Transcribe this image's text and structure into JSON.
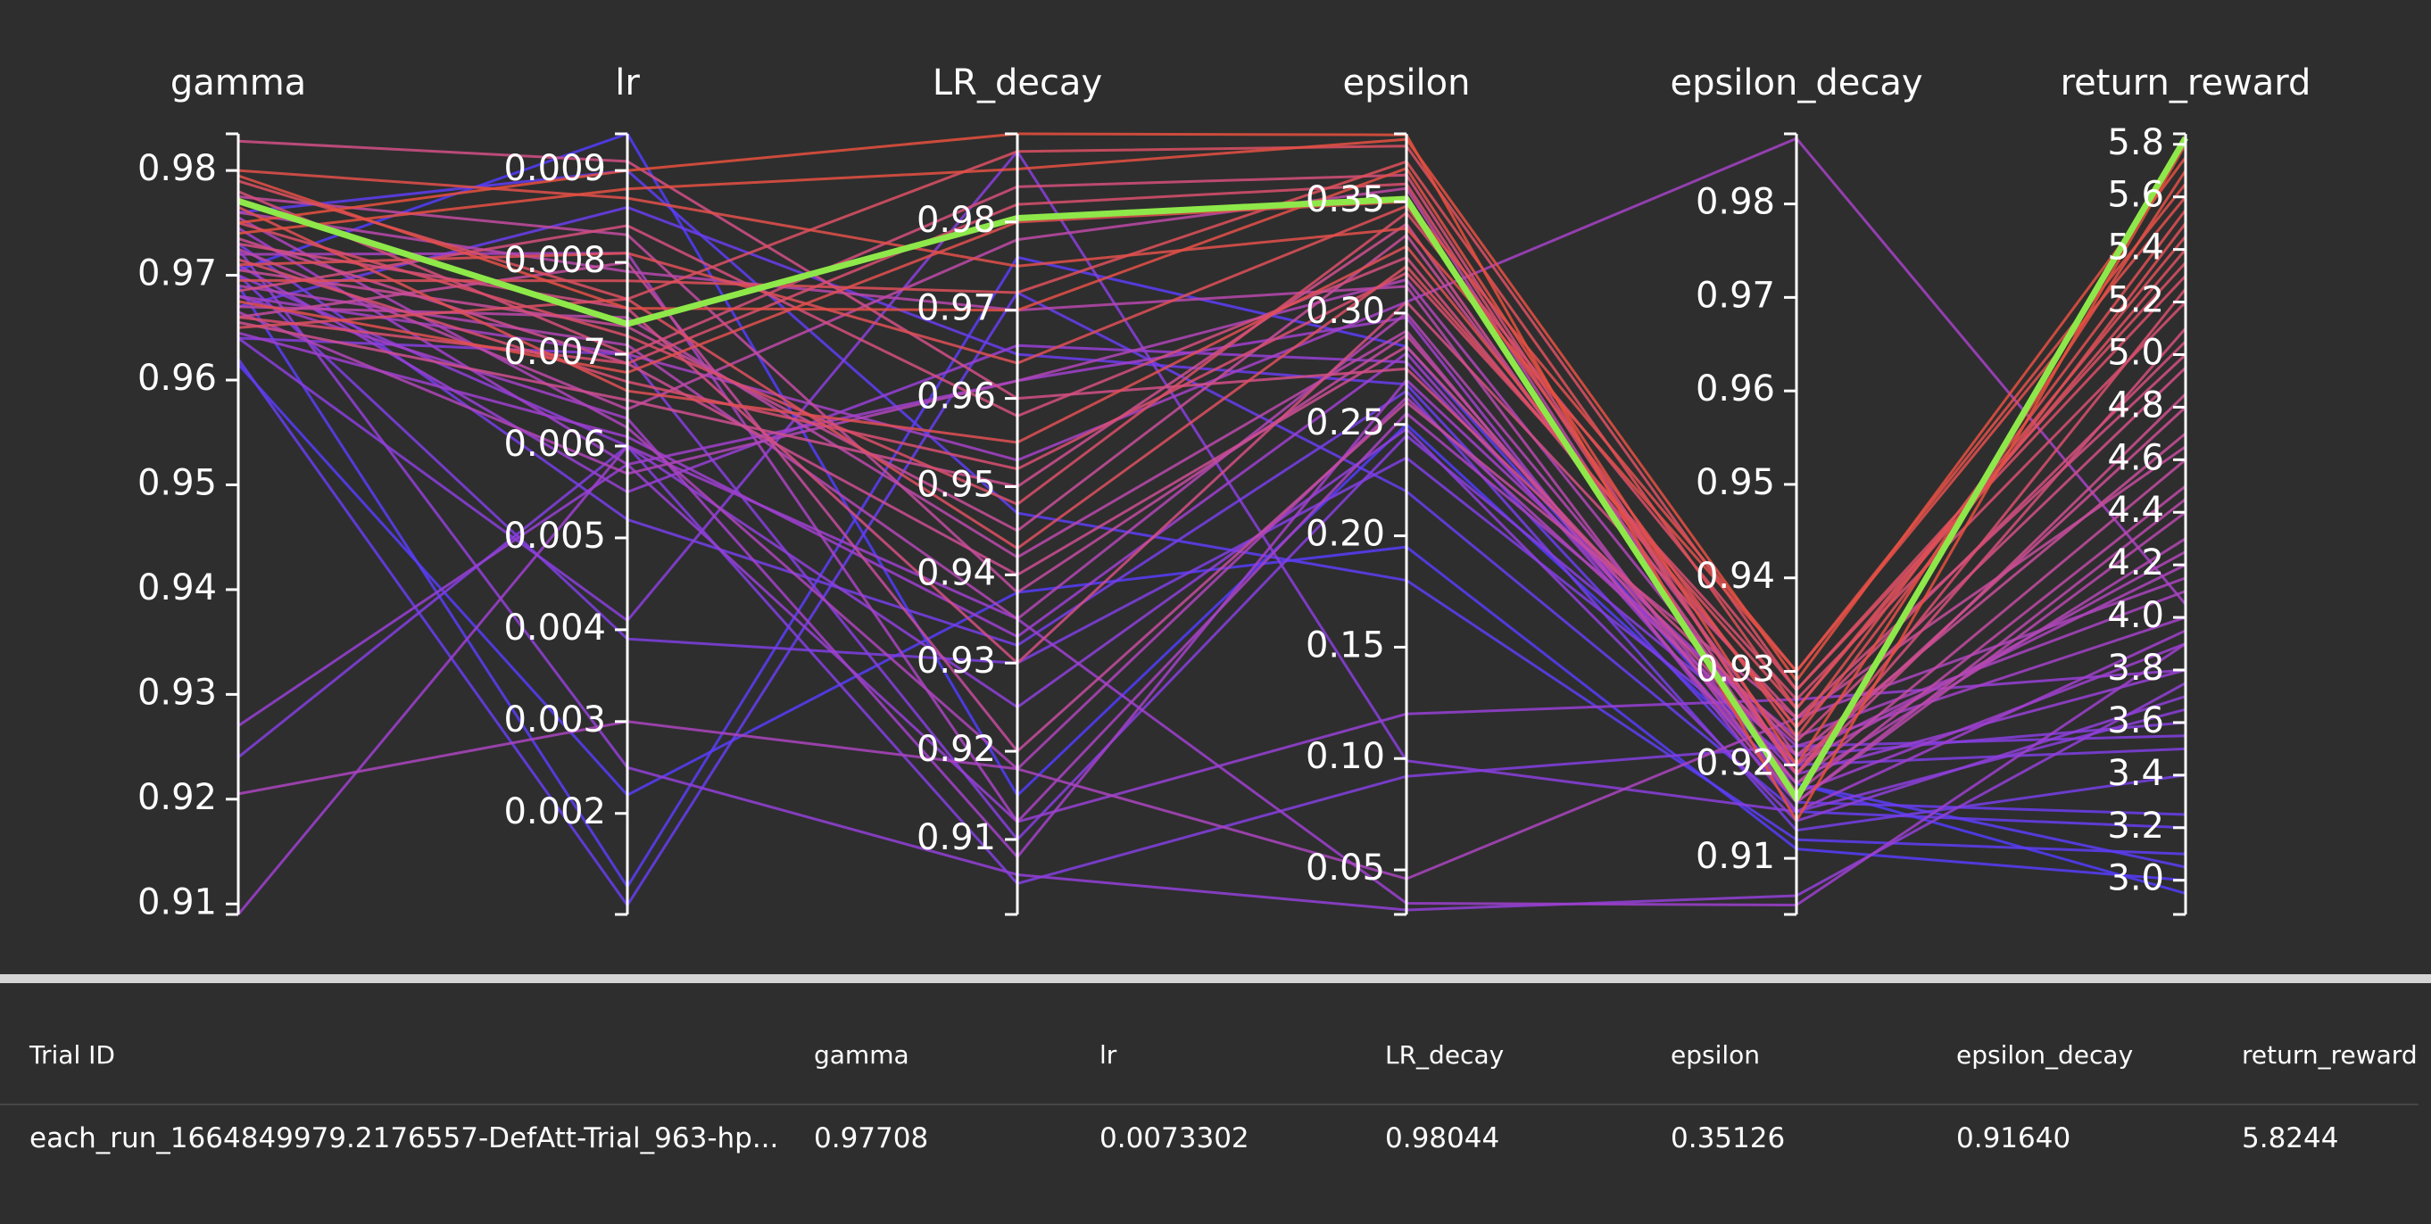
{
  "chart_data": {
    "type": "parallel_coordinates",
    "axes": [
      {
        "name": "gamma",
        "range": [
          0.909,
          0.9835
        ],
        "ticks": [
          0.98,
          0.97,
          0.96,
          0.95,
          0.94,
          0.93,
          0.92,
          0.91
        ],
        "tick_labels": [
          "0.98",
          "0.97",
          "0.96",
          "0.95",
          "0.94",
          "0.93",
          "0.92",
          "0.91"
        ]
      },
      {
        "name": "lr",
        "range": [
          0.0009,
          0.0094
        ],
        "ticks": [
          0.009,
          0.008,
          0.007,
          0.006,
          0.005,
          0.004,
          0.003,
          0.002
        ],
        "tick_labels": [
          "0.009",
          "0.008",
          "0.007",
          "0.006",
          "0.005",
          "0.004",
          "0.003",
          "0.002"
        ]
      },
      {
        "name": "LR_decay",
        "range": [
          0.9015,
          0.99
        ],
        "ticks": [
          0.98,
          0.97,
          0.96,
          0.95,
          0.94,
          0.93,
          0.92,
          0.91
        ],
        "tick_labels": [
          "0.98",
          "0.97",
          "0.96",
          "0.95",
          "0.94",
          "0.93",
          "0.92",
          "0.91"
        ]
      },
      {
        "name": "epsilon",
        "range": [
          0.03,
          0.3805
        ],
        "ticks": [
          0.35,
          0.3,
          0.25,
          0.2,
          0.15,
          0.1,
          0.05
        ],
        "tick_labels": [
          "0.35",
          "0.30",
          "0.25",
          "0.20",
          "0.15",
          "0.10",
          "0.05"
        ]
      },
      {
        "name": "epsilon_decay",
        "range": [
          0.904,
          0.9875
        ],
        "ticks": [
          0.98,
          0.97,
          0.96,
          0.95,
          0.94,
          0.93,
          0.92,
          0.91
        ],
        "tick_labels": [
          "0.98",
          "0.97",
          "0.96",
          "0.95",
          "0.94",
          "0.93",
          "0.92",
          "0.91"
        ]
      },
      {
        "name": "return_reward",
        "range": [
          2.87,
          5.84
        ],
        "ticks": [
          5.8,
          5.6,
          5.4,
          5.2,
          5.0,
          4.8,
          4.6,
          4.4,
          4.2,
          4.0,
          3.8,
          3.6,
          3.4,
          3.2,
          3.0
        ],
        "tick_labels": [
          "5.8",
          "5.6",
          "5.4",
          "5.2",
          "5.0",
          "4.8",
          "4.6",
          "4.4",
          "4.2",
          "4.0",
          "3.8",
          "3.6",
          "3.4",
          "3.2",
          "3.0"
        ]
      }
    ],
    "color_by": "return_reward",
    "colorscale": [
      "#4b3cff",
      "#9b3fd2",
      "#cf4f8f",
      "#e8503a"
    ],
    "highlight_color": "#8ee84a",
    "highlighted_trial": [
      0.97708,
      0.0073302,
      0.98044,
      0.35126,
      0.9164,
      5.8244
    ],
    "series": [
      [
        0.9828,
        0.0091,
        0.96,
        0.275,
        0.9225,
        4.95
      ],
      [
        0.98,
        0.0087,
        0.975,
        0.338,
        0.93,
        5.65
      ],
      [
        0.979,
        0.0076,
        0.943,
        0.321,
        0.926,
        5.4
      ],
      [
        0.978,
        0.007,
        0.984,
        0.362,
        0.919,
        5.1
      ],
      [
        0.9775,
        0.0083,
        0.938,
        0.29,
        0.918,
        4.6
      ],
      [
        0.9765,
        0.0066,
        0.955,
        0.33,
        0.924,
        5.55
      ],
      [
        0.976,
        0.0079,
        0.97,
        0.312,
        0.916,
        4.4
      ],
      [
        0.9755,
        0.0062,
        0.918,
        0.262,
        0.921,
        4.2
      ],
      [
        0.975,
        0.0072,
        0.948,
        0.345,
        0.928,
        5.3
      ],
      [
        0.9745,
        0.0058,
        0.962,
        0.298,
        0.915,
        3.95
      ],
      [
        0.974,
        0.0088,
        0.986,
        0.378,
        0.929,
        5.75
      ],
      [
        0.9735,
        0.0069,
        0.94,
        0.285,
        0.92,
        4.8
      ],
      [
        0.973,
        0.0075,
        0.93,
        0.305,
        0.925,
        5.0
      ],
      [
        0.9725,
        0.0064,
        0.978,
        0.356,
        0.917,
        4.5
      ],
      [
        0.972,
        0.0081,
        0.912,
        0.255,
        0.923,
        4.1
      ],
      [
        0.9715,
        0.0067,
        0.952,
        0.318,
        0.927,
        5.2
      ],
      [
        0.971,
        0.0055,
        0.966,
        0.278,
        0.919,
        3.8
      ],
      [
        0.9705,
        0.0073,
        0.945,
        0.335,
        0.921,
        4.7
      ],
      [
        0.97,
        0.006,
        0.925,
        0.248,
        0.914,
        3.7
      ],
      [
        0.9695,
        0.0078,
        0.972,
        0.368,
        0.926,
        5.45
      ],
      [
        0.969,
        0.0071,
        0.935,
        0.3,
        0.918,
        4.3
      ],
      [
        0.9685,
        0.0084,
        0.958,
        0.325,
        0.924,
        5.05
      ],
      [
        0.968,
        0.0063,
        0.908,
        0.27,
        0.922,
        4.0
      ],
      [
        0.9675,
        0.0068,
        0.98,
        0.35,
        0.93,
        5.6
      ],
      [
        0.967,
        0.0074,
        0.942,
        0.292,
        0.916,
        4.45
      ],
      [
        0.9665,
        0.0057,
        0.962,
        0.315,
        0.92,
        4.25
      ],
      [
        0.966,
        0.008,
        0.92,
        0.26,
        0.925,
        4.65
      ],
      [
        0.9655,
        0.0065,
        0.95,
        0.34,
        0.919,
        4.85
      ],
      [
        0.965,
        0.0076,
        0.988,
        0.375,
        0.928,
        5.35
      ],
      [
        0.9645,
        0.0061,
        0.933,
        0.282,
        0.917,
        3.9
      ],
      [
        0.964,
        0.007,
        0.91,
        0.245,
        0.921,
        3.6
      ],
      [
        0.97,
        0.0039,
        0.93,
        0.235,
        0.92,
        3.5
      ],
      [
        0.976,
        0.009,
        0.947,
        0.18,
        0.912,
        3.1
      ],
      [
        0.962,
        0.001,
        0.972,
        0.22,
        0.915,
        3.2
      ],
      [
        0.9615,
        0.0022,
        0.938,
        0.195,
        0.911,
        3.0
      ],
      [
        0.969,
        0.0012,
        0.976,
        0.285,
        0.918,
        3.05
      ],
      [
        0.973,
        0.0052,
        0.932,
        0.265,
        0.913,
        3.4
      ],
      [
        0.9705,
        0.0094,
        0.915,
        0.25,
        0.918,
        2.95
      ],
      [
        0.967,
        0.0086,
        0.965,
        0.268,
        0.916,
        3.25
      ],
      [
        0.927,
        0.0058,
        0.912,
        0.12,
        0.927,
        3.8
      ],
      [
        0.924,
        0.006,
        0.905,
        0.092,
        0.922,
        3.55
      ],
      [
        0.9205,
        0.003,
        0.918,
        0.046,
        0.925,
        4.15
      ],
      [
        0.909,
        0.006,
        0.935,
        0.035,
        0.905,
        3.9
      ],
      [
        0.964,
        0.0041,
        0.988,
        0.099,
        0.915,
        3.65
      ],
      [
        0.968,
        0.007,
        0.953,
        0.305,
        0.987,
        4.05
      ],
      [
        0.9725,
        0.0025,
        0.906,
        0.032,
        0.906,
        3.75
      ],
      [
        0.975,
        0.009,
        0.99,
        0.38,
        0.914,
        5.8
      ],
      [
        0.9795,
        0.0075,
        0.97,
        0.365,
        0.92,
        5.7
      ],
      [
        0.971,
        0.0081,
        0.964,
        0.348,
        0.923,
        5.5
      ],
      [
        0.966,
        0.0069,
        0.982,
        0.358,
        0.919,
        5.25
      ]
    ]
  },
  "table": {
    "headers": [
      "Trial ID",
      "gamma",
      "lr",
      "LR_decay",
      "epsilon",
      "epsilon_decay",
      "return_reward"
    ],
    "row": [
      "each_run_1664849979.2176557-DefAtt-Trial_963-hp...",
      "0.97708",
      "0.0073302",
      "0.98044",
      "0.35126",
      "0.91640",
      "5.8244"
    ]
  }
}
